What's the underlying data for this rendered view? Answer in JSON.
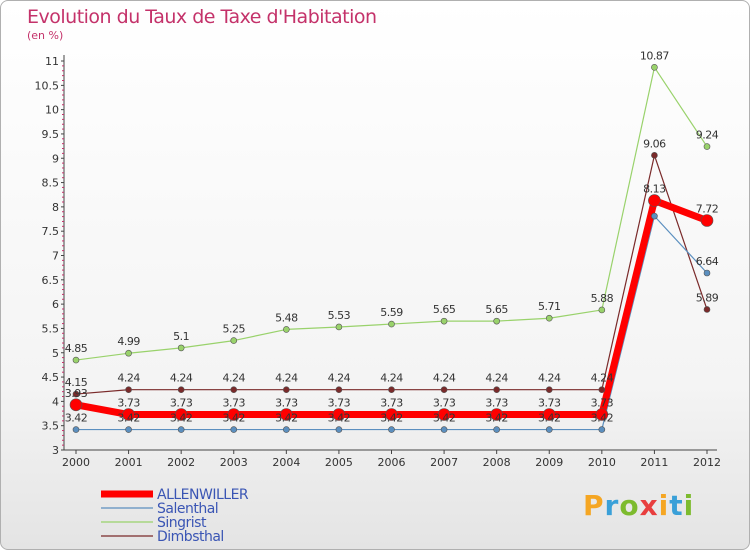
{
  "title": "Evolution du Taux de Taxe d'Habitation",
  "unit": "(en %)",
  "logo": {
    "text": "Proxiti",
    "letters": [
      "P",
      "r",
      "o",
      "x",
      "i",
      "t",
      "i"
    ],
    "colors": [
      "#f5a623",
      "#3aa0d8",
      "#7dbb2e",
      "#e83e3e",
      "#f5a623",
      "#3aa0d8",
      "#7dbb2e"
    ]
  },
  "chart_data": {
    "type": "line",
    "x": [
      "2000",
      "2001",
      "2002",
      "2003",
      "2004",
      "2005",
      "2006",
      "2007",
      "2008",
      "2009",
      "2010",
      "2011",
      "2012"
    ],
    "ylim": [
      3,
      11
    ],
    "yticks": [
      "3",
      "3.5",
      "4",
      "4.5",
      "5",
      "5.5",
      "6",
      "6.5",
      "7",
      "7.5",
      "8",
      "8.5",
      "9",
      "9.5",
      "10",
      "10.5",
      "11"
    ],
    "grid": false,
    "legend_position": "bottom-left",
    "series": [
      {
        "name": "ALLENWILLER",
        "color": "#ff0000",
        "width": 7,
        "r": 6,
        "values": [
          3.93,
          3.73,
          3.73,
          3.73,
          3.73,
          3.73,
          3.73,
          3.73,
          3.73,
          3.73,
          3.73,
          8.13,
          7.72
        ],
        "labels": [
          "3.93",
          "3.73",
          "3.73",
          "3.73",
          "3.73",
          "3.73",
          "3.73",
          "3.73",
          "3.73",
          "3.73",
          "3.73",
          "8.13",
          "7.72"
        ]
      },
      {
        "name": "Salenthal",
        "color": "#5b8fbf",
        "width": 1.2,
        "r": 3,
        "values": [
          3.42,
          3.42,
          3.42,
          3.42,
          3.42,
          3.42,
          3.42,
          3.42,
          3.42,
          3.42,
          3.42,
          7.81,
          6.64
        ],
        "labels": [
          "3.42",
          "3.42",
          "3.42",
          "3.42",
          "3.42",
          "3.42",
          "3.42",
          "3.42",
          "3.42",
          "3.42",
          "3.42",
          "",
          "6.64"
        ]
      },
      {
        "name": "Singrist",
        "color": "#99d26b",
        "width": 1.2,
        "r": 3,
        "values": [
          4.85,
          4.99,
          5.1,
          5.25,
          5.48,
          5.53,
          5.59,
          5.65,
          5.65,
          5.71,
          5.88,
          10.87,
          9.24
        ],
        "labels": [
          "4.85",
          "4.99",
          "5.1",
          "5.25",
          "5.48",
          "5.53",
          "5.59",
          "5.65",
          "5.65",
          "5.71",
          "5.88",
          "10.87",
          "9.24"
        ]
      },
      {
        "name": "Dimbsthal",
        "color": "#7a2a2a",
        "width": 1.2,
        "r": 3,
        "values": [
          4.15,
          4.24,
          4.24,
          4.24,
          4.24,
          4.24,
          4.24,
          4.24,
          4.24,
          4.24,
          4.24,
          9.06,
          5.89
        ],
        "labels": [
          "4.15",
          "4.24",
          "4.24",
          "4.24",
          "4.24",
          "4.24",
          "4.24",
          "4.24",
          "4.24",
          "4.24",
          "4.24",
          "9.06",
          "5.89"
        ]
      }
    ]
  }
}
